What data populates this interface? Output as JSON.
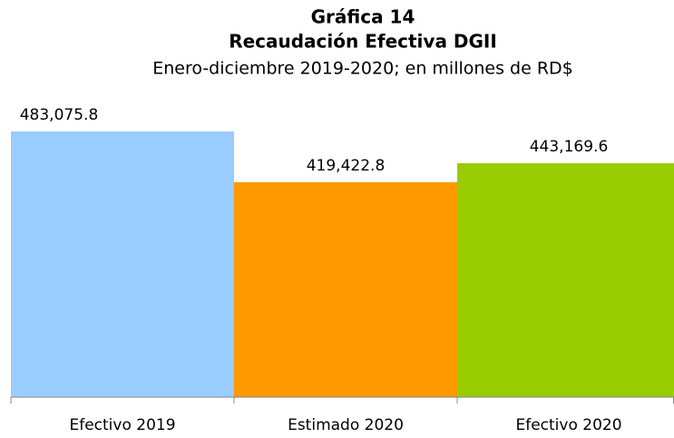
{
  "chart_data": {
    "type": "bar",
    "title": "Gráfica 14",
    "subtitle": "Recaudación Efectiva DGII",
    "subtitle2": "Enero-diciembre 2019-2020; en millones de RD$",
    "categories": [
      "Efectivo 2019",
      "Estimado 2020",
      "Efectivo 2020"
    ],
    "values": [
      483075.8,
      419422.8,
      443169.6
    ],
    "value_labels": [
      "483,075.8",
      "419,422.8",
      "443,169.6"
    ],
    "colors": [
      "#99ccff",
      "#ff9900",
      "#99cc00"
    ],
    "ylim": [
      150000,
      500000
    ],
    "grid": false
  }
}
